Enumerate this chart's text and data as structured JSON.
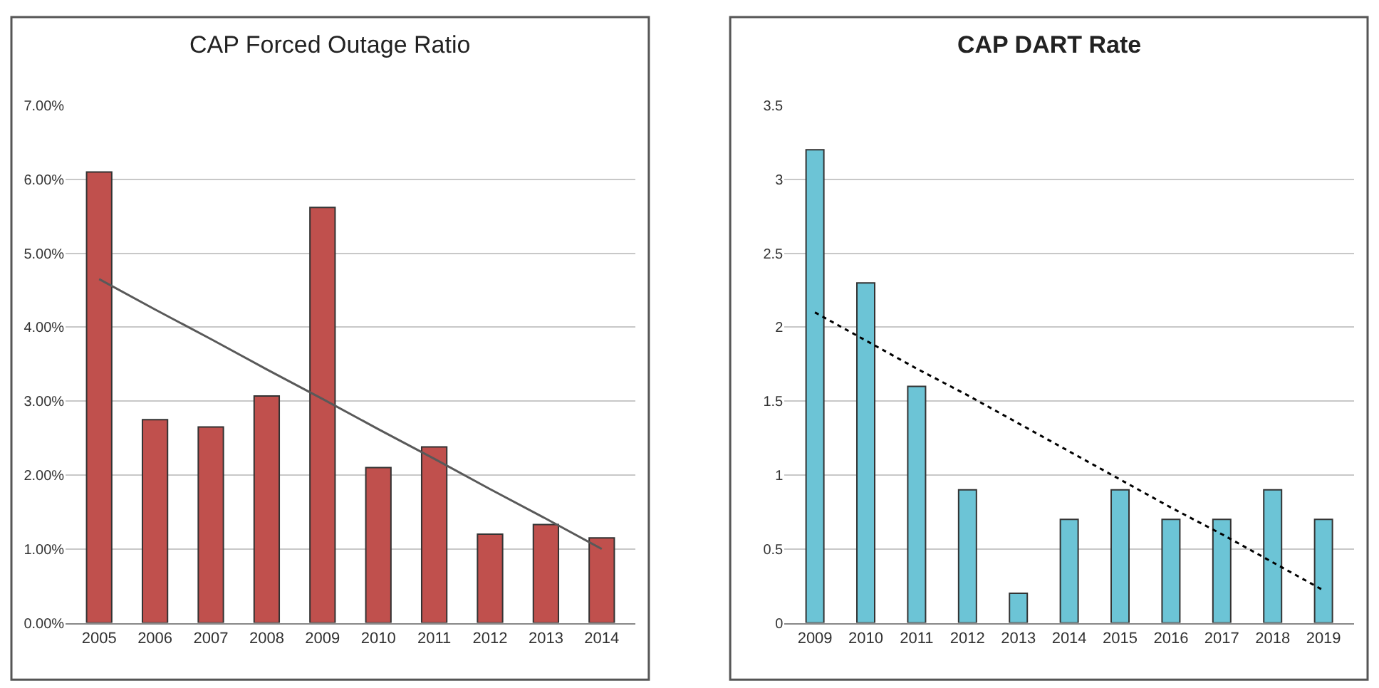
{
  "chart_data": [
    {
      "type": "bar",
      "title": "CAP Forced Outage Ratio",
      "categories": [
        "2005",
        "2006",
        "2007",
        "2008",
        "2009",
        "2010",
        "2011",
        "2012",
        "2013",
        "2014"
      ],
      "series": [
        {
          "color": "#c0504d",
          "values": [
            6.1,
            2.75,
            2.65,
            3.07,
            5.62,
            2.1,
            2.38,
            1.2,
            1.33,
            1.15
          ]
        },
        {
          "type": "line",
          "values": [
            4.65,
            4.24,
            3.84,
            3.43,
            3.03,
            2.62,
            2.22,
            1.81,
            1.41,
            1.0
          ],
          "color": "#595959",
          "line_style": "solid"
        }
      ],
      "ylim": [
        0,
        7
      ],
      "yticks": [
        {
          "value": 0,
          "label": "0.00%"
        },
        {
          "value": 1,
          "label": "1.00%"
        },
        {
          "value": 2,
          "label": "2.00%"
        },
        {
          "value": 3,
          "label": "3.00%"
        },
        {
          "value": 4,
          "label": "4.00%"
        },
        {
          "value": 5,
          "label": "5.00%"
        },
        {
          "value": 6,
          "label": "6.00%"
        },
        {
          "value": 7,
          "label": "7.00%"
        }
      ],
      "grid": "y"
    },
    {
      "type": "bar",
      "title": "CAP DART Rate",
      "categories": [
        "2009",
        "2010",
        "2011",
        "2012",
        "2013",
        "2014",
        "2015",
        "2016",
        "2017",
        "2018",
        "2019"
      ],
      "series": [
        {
          "color": "#6cc4d6",
          "values": [
            3.2,
            2.3,
            1.6,
            0.9,
            0.2,
            0.7,
            0.9,
            0.7,
            0.7,
            0.9,
            0.7
          ]
        },
        {
          "type": "line",
          "values": [
            2.1,
            1.91,
            1.72,
            1.54,
            1.35,
            1.16,
            0.97,
            0.78,
            0.6,
            0.41,
            0.22
          ],
          "color": "#000000",
          "line_style": "dotted"
        }
      ],
      "ylim": [
        0,
        3.5
      ],
      "yticks": [
        0,
        0.5,
        1,
        1.5,
        2,
        2.5,
        3,
        3.5
      ],
      "grid": "y"
    }
  ]
}
